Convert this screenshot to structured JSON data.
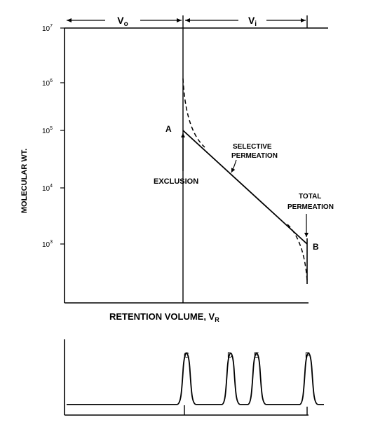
{
  "diagram": {
    "y_axis_label": "MOLECULAR WT.",
    "x_axis_label": "RETENTION VOLUME, V",
    "x_axis_label_sub": "R",
    "y_ticks": [
      {
        "base": "10",
        "exp": "7"
      },
      {
        "base": "10",
        "exp": "6"
      },
      {
        "base": "10",
        "exp": "5"
      },
      {
        "base": "10",
        "exp": "4"
      },
      {
        "base": "10",
        "exp": "3"
      }
    ],
    "top_arrows": [
      {
        "base": "V",
        "sub": "o"
      },
      {
        "base": "V",
        "sub": "i"
      }
    ],
    "point_a": "A",
    "point_b": "B",
    "exclusion": "EXCLUSION",
    "selective": [
      "SELECTIVE",
      "PERMEATION"
    ],
    "total": [
      "TOTAL",
      "PERMEATION"
    ],
    "peaks": [
      "C",
      "D",
      "E",
      "F"
    ]
  },
  "colors": {
    "ink": "#000000",
    "background": "#ffffff"
  }
}
